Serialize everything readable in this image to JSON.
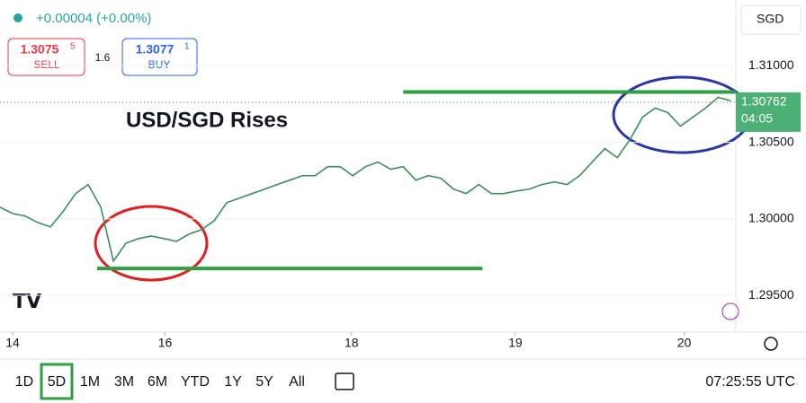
{
  "header": {
    "change": "+0.00004 (+0.00%)",
    "sell": {
      "price": "1.3075",
      "pip": "5",
      "label": "SELL"
    },
    "spread": "1.6",
    "buy": {
      "price": "1.3077",
      "pip": "1",
      "label": "BUY"
    },
    "currency": "SGD"
  },
  "chart_data": {
    "type": "line",
    "title": "USD/SGD Rises",
    "color": "#3a8f5c",
    "x": [
      0,
      1,
      2,
      3,
      4,
      5,
      6,
      7,
      8,
      9,
      10,
      11,
      12,
      13,
      14,
      15,
      16,
      17,
      18,
      19,
      20,
      21,
      22,
      23,
      24,
      25,
      26,
      27,
      28,
      29,
      30,
      31,
      32,
      33,
      34,
      35,
      36,
      37,
      38,
      39,
      40,
      41,
      42,
      43,
      44,
      45,
      46,
      47,
      48,
      49,
      50,
      51,
      52,
      53,
      54,
      55,
      56,
      57,
      58
    ],
    "values": [
      1.30076,
      1.30035,
      1.30018,
      1.29976,
      1.29947,
      1.30047,
      1.30165,
      1.30224,
      1.30076,
      1.29724,
      1.29841,
      1.29871,
      1.29888,
      1.29871,
      1.29853,
      1.299,
      1.29929,
      1.29988,
      1.30106,
      1.30135,
      1.30165,
      1.30194,
      1.30224,
      1.30253,
      1.30282,
      1.30282,
      1.30341,
      1.30341,
      1.30282,
      1.30341,
      1.30371,
      1.30324,
      1.30341,
      1.30253,
      1.30282,
      1.30265,
      1.30194,
      1.30165,
      1.30224,
      1.30165,
      1.30165,
      1.30182,
      1.30194,
      1.30224,
      1.30241,
      1.30224,
      1.30282,
      1.30371,
      1.30459,
      1.304,
      1.30518,
      1.30665,
      1.30724,
      1.30694,
      1.30606,
      1.30665,
      1.30724,
      1.30794,
      1.30771
    ],
    "xlim": [
      0,
      58.4
    ],
    "xticks": [
      {
        "value": 1,
        "label": "14"
      },
      {
        "value": 13.1,
        "label": "16"
      },
      {
        "value": 27.9,
        "label": "18"
      },
      {
        "value": 40.9,
        "label": "19"
      },
      {
        "value": 54.3,
        "label": "20"
      }
    ],
    "ylim": [
      1.2926,
      1.3143
    ],
    "yticks": [
      {
        "value": 1.295,
        "label": "1.29500"
      },
      {
        "value": 1.3,
        "label": "1.30000"
      },
      {
        "value": 1.305,
        "label": "1.30500"
      },
      {
        "value": 1.31,
        "label": "1.31000"
      }
    ],
    "levels": [
      {
        "value": 1.30829,
        "from": 32,
        "to": 58.4
      },
      {
        "value": 1.29676,
        "from": 7.7,
        "to": 38.3
      }
    ],
    "level_color": "#2ea043",
    "current_price": {
      "value": 1.30762,
      "label": "1.30762"
    },
    "countdown": "04:05"
  },
  "toolbar": {
    "ranges": [
      "1D",
      "5D",
      "1M",
      "3M",
      "6M",
      "YTD",
      "1Y",
      "5Y",
      "All"
    ],
    "selected": 1,
    "time": "07:25:55 UTC"
  }
}
